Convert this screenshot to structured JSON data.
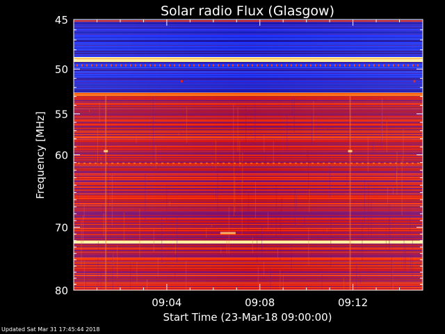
{
  "chart_data": {
    "type": "heatmap",
    "title": "Solar radio Flux (Glasgow)",
    "xlabel": "Start Time (23-Mar-18 09:00:00)",
    "ylabel": "Frequency [MHz]",
    "x_ticks": [
      "09:04",
      "09:08",
      "09:12"
    ],
    "x_tick_minutes": [
      4,
      8,
      12
    ],
    "x_range_minutes": [
      0,
      15
    ],
    "y_ticks": [
      45,
      50,
      55,
      60,
      70,
      80
    ],
    "ylim": [
      45,
      80
    ],
    "y_scale": "log",
    "colormap": [
      "#1a0a8c",
      "#1e2fff",
      "#7a1070",
      "#d01010",
      "#ff3000",
      "#ff9a20",
      "#fff0a0"
    ],
    "bands": [
      {
        "f_start": 45.2,
        "f_end": 48.7,
        "level": "low"
      },
      {
        "f_start": 48.7,
        "f_end": 49.2,
        "level": "peak"
      },
      {
        "f_start": 49.2,
        "f_end": 52.5,
        "level": "low"
      },
      {
        "f_start": 52.5,
        "f_end": 52.9,
        "level": "high"
      },
      {
        "f_start": 52.9,
        "f_end": 71.9,
        "level": "mid"
      },
      {
        "f_start": 71.9,
        "f_end": 72.4,
        "level": "peak"
      },
      {
        "f_start": 72.4,
        "f_end": 80,
        "level": "mid"
      }
    ],
    "grid": false
  },
  "footer": {
    "updated": "Updated Sat Mar 31 17:45:44 2018"
  }
}
